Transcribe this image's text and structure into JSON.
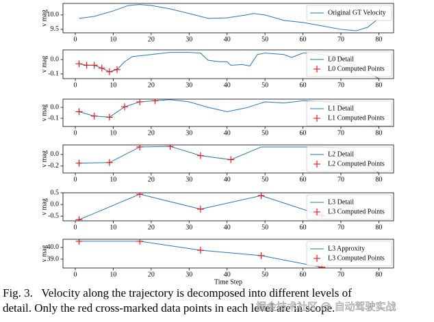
{
  "chart_data": [
    {
      "type": "line",
      "ylabel": "v mag",
      "xlim": [
        -3.25,
        83.9
      ],
      "xticks": [
        0,
        10,
        20,
        30,
        40,
        50,
        60,
        70,
        80
      ],
      "ylim": [
        9.38,
        10.4
      ],
      "yticks": [
        9.5,
        {
          "value": 10,
          "label": "10.0"
        }
      ],
      "legend": "upper right",
      "series": [
        {
          "name": "Original GT Velocity",
          "color": "#1f77b4",
          "x": [
            1,
            5,
            10,
            14,
            17,
            20,
            25,
            30,
            35,
            40,
            45,
            47,
            50,
            55,
            60,
            65,
            70,
            74,
            77,
            80
          ],
          "values": [
            9.88,
            9.95,
            10.14,
            10.33,
            10.36,
            10.33,
            10.21,
            10.05,
            9.88,
            9.9,
            10.0,
            10.05,
            10.0,
            9.81,
            9.74,
            9.62,
            9.5,
            9.45,
            9.57,
            9.88
          ]
        }
      ]
    },
    {
      "type": "line",
      "ylabel": "v mag",
      "xlim": [
        -3.25,
        83.9
      ],
      "xticks": [
        0,
        10,
        20,
        30,
        40,
        50,
        60,
        70,
        80
      ],
      "ylim": [
        -0.133,
        0.067
      ],
      "yticks": [
        -0.1,
        {
          "value": 0,
          "label": "0.0"
        }
      ],
      "legend": "upper right",
      "series": [
        {
          "name": "L0 Detail",
          "color": "#1f77b4",
          "x": [
            1,
            3,
            5,
            7,
            9,
            11,
            13,
            15,
            20,
            25,
            30,
            33,
            35,
            38,
            40,
            41,
            44,
            46,
            48,
            50,
            55,
            57,
            60,
            62,
            65,
            70,
            75,
            80
          ],
          "values": [
            -0.03,
            -0.04,
            -0.04,
            -0.06,
            -0.085,
            -0.07,
            -0.015,
            0.02,
            0.035,
            0.05,
            0.05,
            0.045,
            -0.005,
            -0.015,
            -0.015,
            -0.04,
            -0.035,
            -0.045,
            0.035,
            0.045,
            0.035,
            0.015,
            0.045,
            0.045,
            0.035,
            0.01,
            -0.06,
            -0.133
          ]
        },
        {
          "name": "L0 Computed Points",
          "color": "red",
          "marker": "+",
          "x": [
            1,
            3,
            5,
            7,
            9,
            11
          ],
          "values": [
            -0.03,
            -0.04,
            -0.04,
            -0.06,
            -0.085,
            -0.07
          ]
        }
      ]
    },
    {
      "type": "line",
      "ylabel": "v mag",
      "xlim": [
        -3.25,
        83.9
      ],
      "xticks": [
        0,
        10,
        20,
        30,
        40,
        50,
        60,
        70,
        80
      ],
      "ylim": [
        -0.175,
        0.075
      ],
      "yticks": [
        -0.1,
        {
          "value": 0,
          "label": "0.0"
        }
      ],
      "legend": "upper right",
      "series": [
        {
          "name": "L1 Detail",
          "color": "#1f77b4",
          "x": [
            1,
            5,
            9,
            13,
            17,
            21,
            25,
            30,
            35,
            40,
            45,
            50,
            55,
            60,
            65,
            70,
            75,
            80
          ],
          "values": [
            -0.04,
            -0.08,
            -0.09,
            0.005,
            0.05,
            0.06,
            0.07,
            0.05,
            0,
            -0.04,
            -0.005,
            0.05,
            0.04,
            0.06,
            0.055,
            0.03,
            -0.07,
            -0.175
          ]
        },
        {
          "name": "L1 Computed Points",
          "color": "red",
          "marker": "+",
          "x": [
            1,
            5,
            9,
            13,
            17,
            21
          ],
          "values": [
            -0.04,
            -0.08,
            -0.09,
            0.005,
            0.05,
            0.06
          ]
        }
      ]
    },
    {
      "type": "line",
      "ylabel": "v mag",
      "xlim": [
        -3.25,
        83.9
      ],
      "xticks": [
        0,
        10,
        20,
        30,
        40,
        50,
        60,
        70,
        80
      ],
      "ylim": [
        -0.32,
        0.165
      ],
      "yticks": [
        -0.2,
        {
          "value": 0,
          "label": "0.0"
        }
      ],
      "legend": "upper right",
      "series": [
        {
          "name": "L2 Detail",
          "color": "#1f77b4",
          "x": [
            1,
            9,
            17,
            25,
            33,
            41,
            49,
            57,
            65,
            70,
            80
          ],
          "values": [
            -0.15,
            -0.14,
            0.13,
            0.14,
            -0.02,
            -0.09,
            0.13,
            0.13,
            0.13,
            0.1,
            -0.32
          ]
        },
        {
          "name": "L2 Computed Points",
          "color": "red",
          "marker": "+",
          "x": [
            1,
            9,
            17,
            25,
            33,
            41
          ],
          "values": [
            -0.15,
            -0.14,
            0.13,
            0.14,
            -0.02,
            -0.09
          ]
        }
      ]
    },
    {
      "type": "line",
      "ylabel": "v mag",
      "xlim": [
        -3.25,
        83.9
      ],
      "xticks": [
        0,
        10,
        20,
        30,
        40,
        50,
        60,
        70,
        80
      ],
      "ylim": [
        -0.7,
        0.5
      ],
      "yticks": [
        -0.5,
        {
          "value": 0,
          "label": "0.0"
        },
        0.5
      ],
      "legend": "upper right",
      "series": [
        {
          "name": "L3 Detail",
          "color": "#1f77b4",
          "x": [
            1,
            17,
            33,
            49,
            65
          ],
          "values": [
            -0.65,
            0.44,
            -0.2,
            0.38,
            -0.47
          ]
        },
        {
          "name": "L3 Computed Points",
          "color": "red",
          "marker": "+",
          "x": [
            1,
            17,
            33,
            49,
            65
          ],
          "values": [
            -0.65,
            0.44,
            -0.2,
            0.38,
            -0.47
          ]
        }
      ]
    },
    {
      "type": "line",
      "ylabel": "v mag",
      "xlabel": "Time Step",
      "xlim": [
        -3.25,
        83.9
      ],
      "xticks": [
        0,
        10,
        20,
        30,
        40,
        50,
        60,
        70,
        80
      ],
      "ylim": [
        38.24,
        40.7
      ],
      "yticks": [
        {
          "value": 39,
          "label": "39.0"
        },
        {
          "value": 40,
          "label": "40.0"
        }
      ],
      "legend": "upper right",
      "series": [
        {
          "name": "L3 Approxity",
          "color": "#1f77b4",
          "x": [
            1,
            17,
            33,
            49,
            65
          ],
          "values": [
            40.53,
            40.53,
            39.76,
            39.3,
            38.3
          ]
        },
        {
          "name": "L3 Computed Points",
          "color": "red",
          "marker": "+",
          "x": [
            1,
            17,
            33,
            49,
            65
          ],
          "values": [
            40.53,
            40.53,
            39.76,
            39.3,
            38.3
          ]
        }
      ]
    }
  ],
  "caption": [
    "Fig. 3.   Velocity along the trajectory is decomposed into different levels of",
    "detail. Only the red cross-marked data points in each level are in scope."
  ],
  "watermark": "掘金技术社区 @ 自动驾驶实战"
}
